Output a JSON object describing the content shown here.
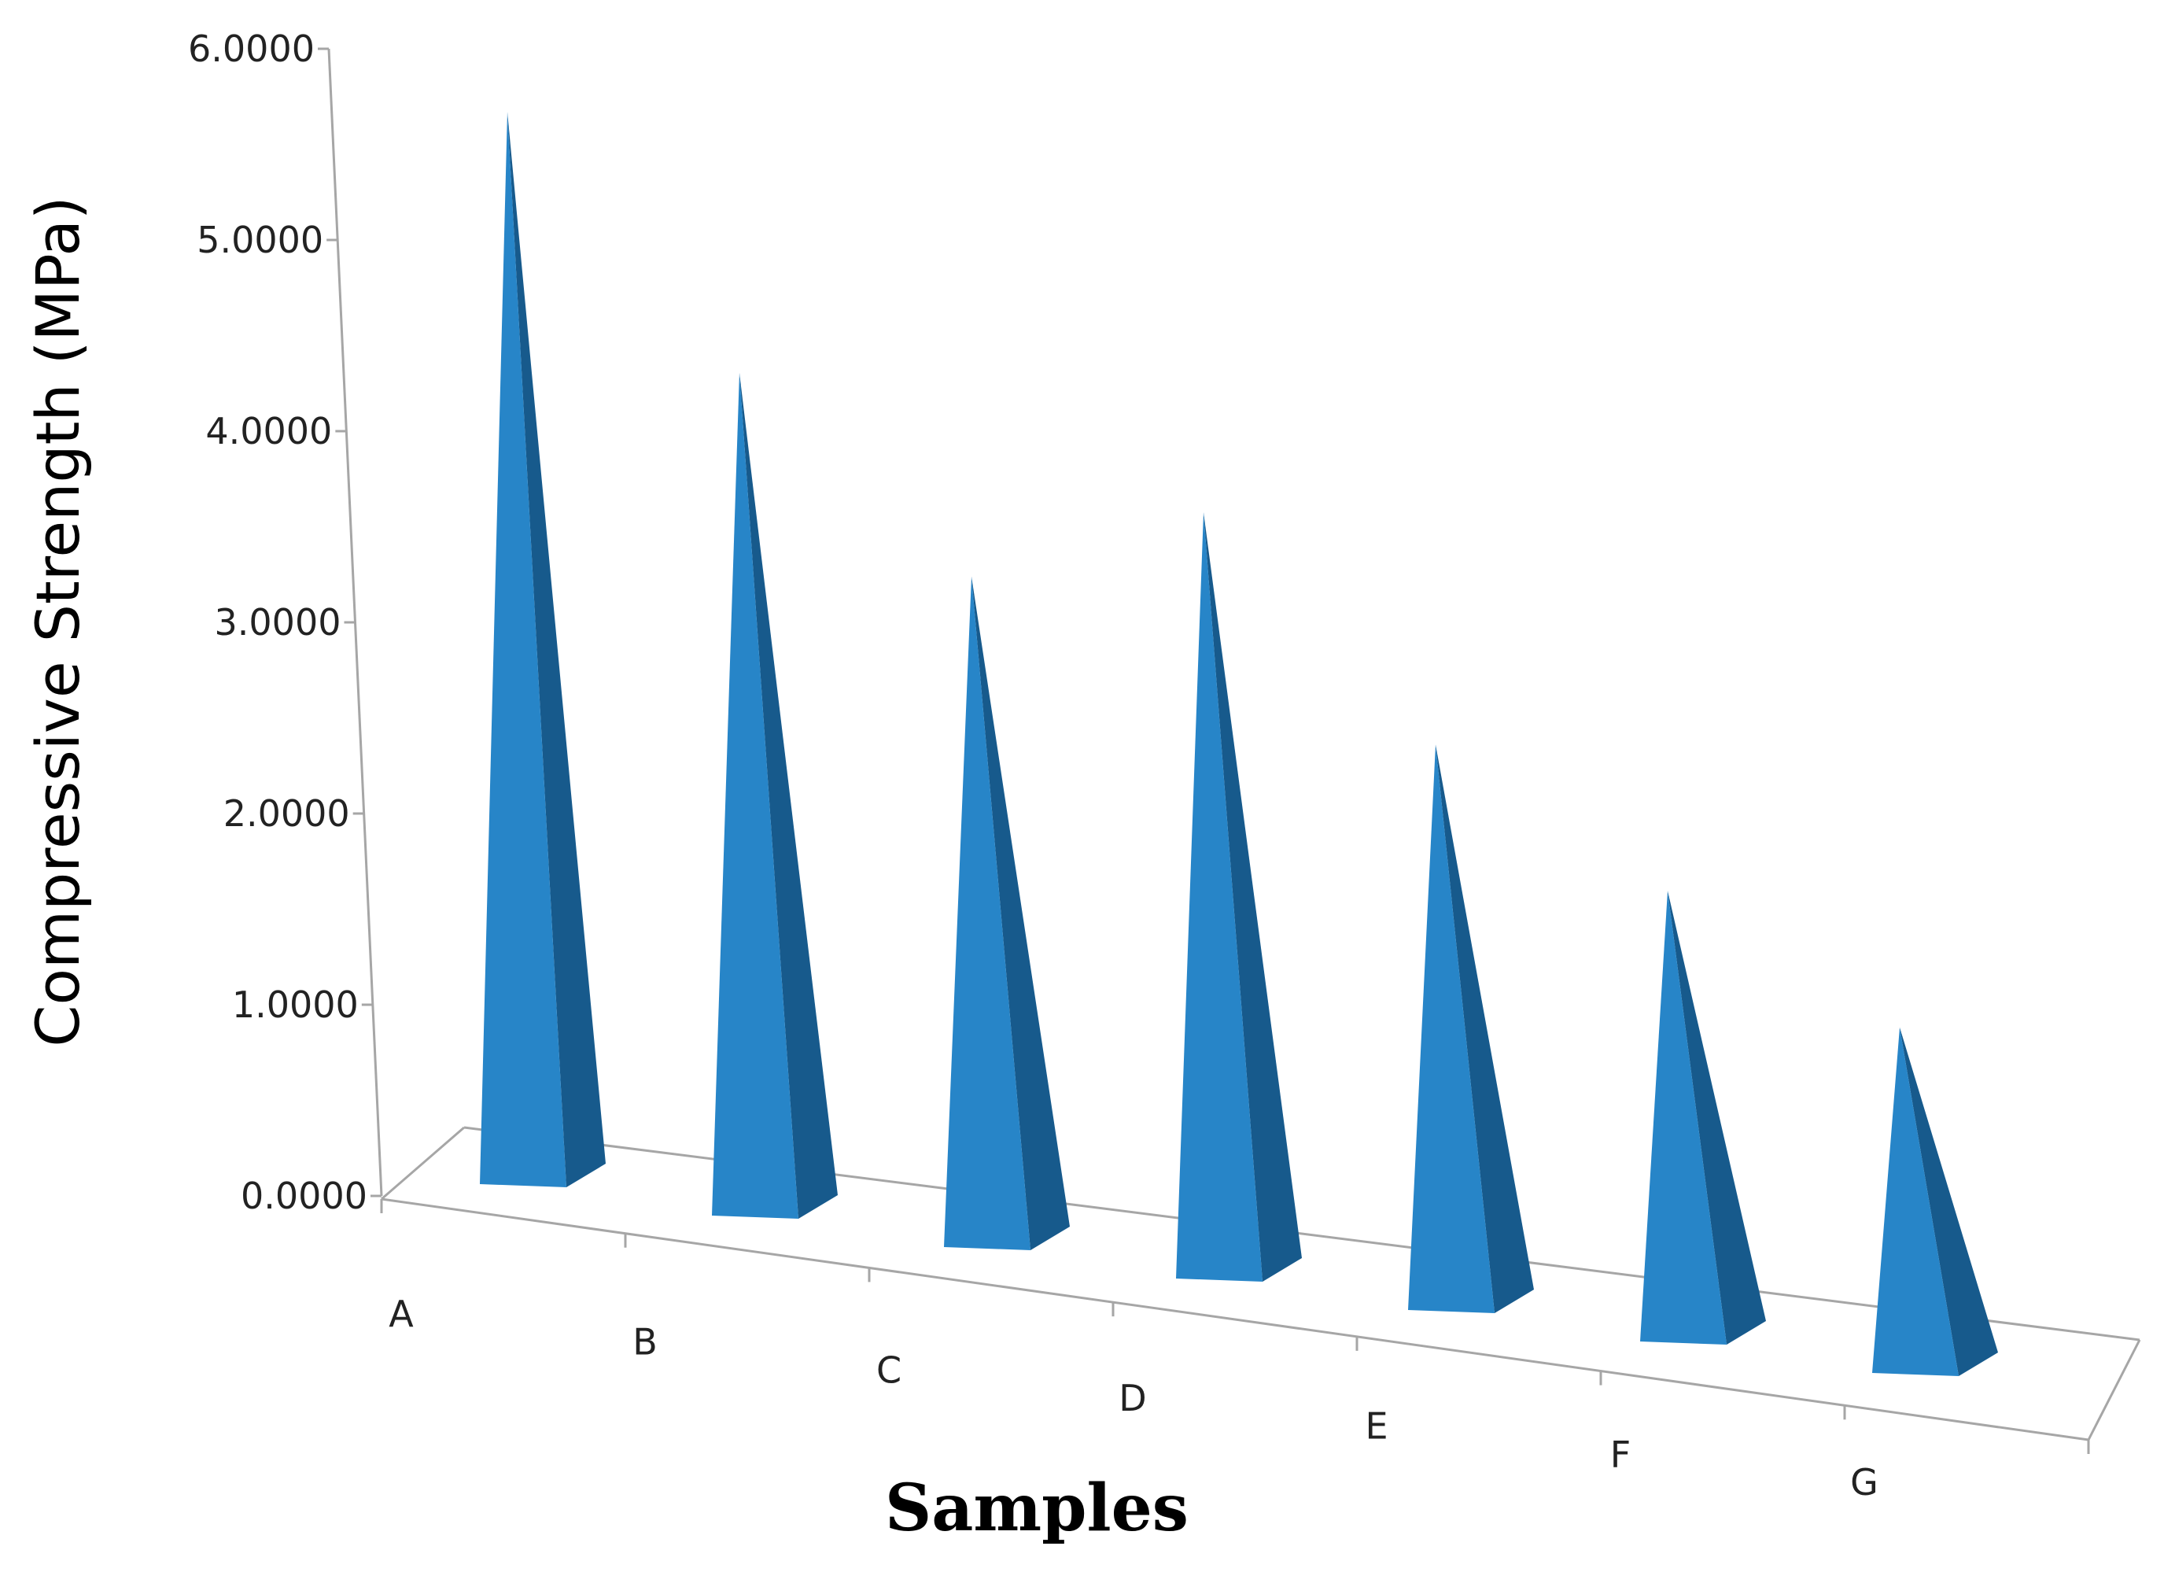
{
  "chart_data": {
    "type": "bar",
    "style": "3d-pyramid",
    "categories": [
      "A",
      "B",
      "C",
      "D",
      "E",
      "F",
      "G"
    ],
    "values": [
      5.55,
      4.35,
      3.45,
      3.95,
      2.9,
      2.3,
      1.75
    ],
    "y_tick_labels": [
      "0.0000",
      "1.0000",
      "2.0000",
      "3.0000",
      "4.0000",
      "5.0000",
      "6.0000"
    ],
    "ylim": [
      0,
      6
    ],
    "xlabel": "Samples",
    "ylabel": "Compressive Strength (MPa)",
    "grid": false,
    "legend": "none",
    "colors": {
      "front": "#2785c8",
      "side": "#175a8c",
      "axis": "#a6a6a6"
    }
  }
}
